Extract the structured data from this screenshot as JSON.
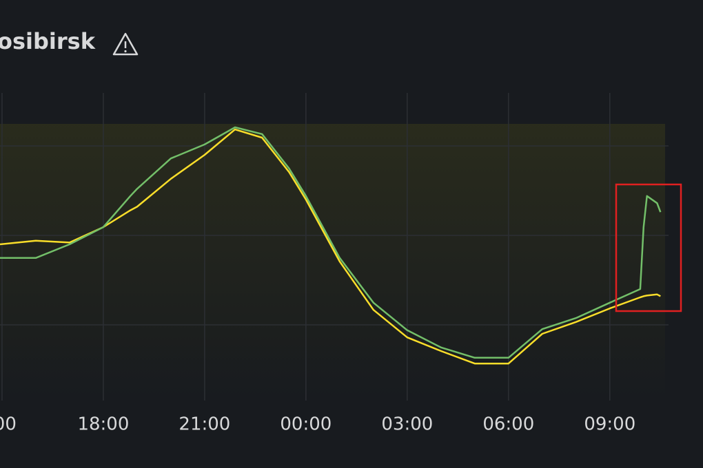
{
  "chart_data": {
    "type": "line",
    "title": "osibirsk",
    "x": [
      14.94,
      16,
      17,
      18,
      18.8,
      19,
      20,
      21,
      21.9,
      22.7,
      23.5,
      24,
      25,
      26,
      27,
      28,
      29,
      30,
      31,
      32,
      33,
      33.9,
      34,
      34.1,
      34.4,
      34.5
    ],
    "xlim": [
      14.94,
      35.76
    ],
    "xticks": [
      {
        "value": 15,
        "label": ":00"
      },
      {
        "value": 18,
        "label": "18:00"
      },
      {
        "value": 21,
        "label": "21:00"
      },
      {
        "value": 24,
        "label": "00:00"
      },
      {
        "value": 27,
        "label": "03:00"
      },
      {
        "value": 30,
        "label": "06:00"
      },
      {
        "value": 33,
        "label": "09:00"
      }
    ],
    "ylim": [
      0,
      100
    ],
    "yticks": [
      25,
      50,
      75
    ],
    "grid": true,
    "series": [
      {
        "color": "#fade2a",
        "values": [
          47.5,
          48.5,
          48,
          52.3,
          57,
          58,
          65.8,
          72.5,
          79.6,
          77.3,
          67.7,
          60,
          42.7,
          29.2,
          21.5,
          17.7,
          14.2,
          14.2,
          22.5,
          25.8,
          29.6,
          32.7,
          33,
          33.2,
          33.5,
          33
        ]
      },
      {
        "color": "#73bf69",
        "values": [
          43.7,
          43.7,
          47.5,
          52.3,
          61,
          63,
          71.5,
          75.4,
          80.2,
          78.3,
          68.7,
          61,
          43.7,
          31.2,
          23.5,
          18.7,
          15.8,
          15.8,
          23.8,
          26.9,
          31.2,
          35,
          52.3,
          61,
          59,
          56.5
        ]
      }
    ]
  }
}
